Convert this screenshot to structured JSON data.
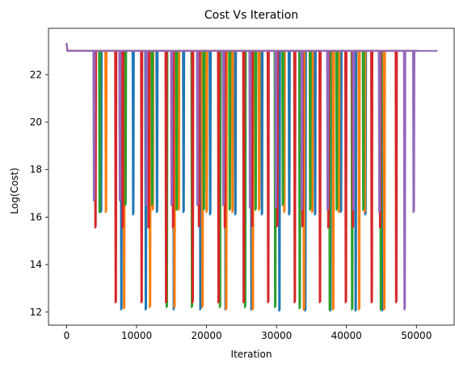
{
  "chart_data": {
    "type": "line",
    "title": "Cost Vs Iteration",
    "xlabel": "Iteration",
    "ylabel": "Log(Cost)",
    "xlim": [
      -2600,
      55400
    ],
    "ylim": [
      11.45,
      23.95
    ],
    "xticks": [
      0,
      10000,
      20000,
      30000,
      40000,
      50000
    ],
    "xtick_labels": [
      "0",
      "10000",
      "20000",
      "30000",
      "40000",
      "50000"
    ],
    "yticks": [
      12,
      14,
      16,
      18,
      20,
      22
    ],
    "ytick_labels": [
      "12",
      "14",
      "16",
      "18",
      "20",
      "22"
    ],
    "grid": false,
    "baseline": {
      "start": [
        [
          0,
          23.3
        ],
        [
          100,
          23.0
        ]
      ],
      "level": 23.0
    },
    "series": [
      {
        "color": "#1f77b4",
        "end_x": 50000,
        "dips": [
          [
            4800,
            16.2
          ],
          [
            7700,
            12.1
          ],
          [
            9400,
            16.1
          ],
          [
            11200,
            12.1
          ],
          [
            12800,
            16.2
          ],
          [
            15200,
            12.1
          ],
          [
            16600,
            16.2
          ],
          [
            19000,
            12.1
          ],
          [
            20400,
            16.1
          ],
          [
            22600,
            12.1
          ],
          [
            24000,
            16.1
          ],
          [
            26300,
            12.1
          ],
          [
            27800,
            16.1
          ],
          [
            30300,
            12.05
          ],
          [
            31700,
            16.1
          ],
          [
            34000,
            12.05
          ],
          [
            35400,
            16.1
          ],
          [
            37600,
            12.05
          ],
          [
            39100,
            16.2
          ],
          [
            41200,
            12.05
          ],
          [
            42600,
            16.1
          ],
          [
            45000,
            12.05
          ]
        ]
      },
      {
        "color": "#ff7f0e",
        "end_x": 50000,
        "dips": [
          [
            5500,
            16.2
          ],
          [
            8100,
            12.15
          ],
          [
            12200,
            16.3
          ],
          [
            11800,
            12.2
          ],
          [
            15300,
            12.2
          ],
          [
            15900,
            16.3
          ],
          [
            19300,
            12.2
          ],
          [
            19900,
            16.2
          ],
          [
            22700,
            12.1
          ],
          [
            23600,
            16.2
          ],
          [
            26500,
            12.1
          ],
          [
            27400,
            16.3
          ],
          [
            31000,
            16.2
          ],
          [
            33800,
            12.1
          ],
          [
            35000,
            16.2
          ],
          [
            38000,
            12.1
          ],
          [
            38800,
            16.2
          ],
          [
            41700,
            12.1
          ],
          [
            42500,
            16.2
          ],
          [
            45300,
            12.1
          ]
        ]
      },
      {
        "color": "#2ca02c",
        "end_x": 50000,
        "dips": [
          [
            4600,
            16.2
          ],
          [
            8300,
            16.5
          ],
          [
            12100,
            16.5
          ],
          [
            14200,
            12.2
          ],
          [
            15600,
            16.3
          ],
          [
            17800,
            12.2
          ],
          [
            19500,
            16.3
          ],
          [
            21800,
            12.2
          ],
          [
            23200,
            16.3
          ],
          [
            25400,
            12.2
          ],
          [
            26900,
            16.3
          ],
          [
            29700,
            12.2
          ],
          [
            30800,
            16.5
          ],
          [
            33200,
            12.15
          ],
          [
            34700,
            16.3
          ],
          [
            37500,
            12.1
          ],
          [
            38500,
            16.3
          ],
          [
            40700,
            12.1
          ],
          [
            42300,
            16.3
          ],
          [
            44800,
            12.1
          ]
        ]
      },
      {
        "color": "#d62728",
        "end_x": 50000,
        "dips": [
          [
            4000,
            15.55
          ],
          [
            6900,
            12.4
          ],
          [
            7900,
            15.55
          ],
          [
            10600,
            12.4
          ],
          [
            11600,
            15.55
          ],
          [
            14100,
            12.4
          ],
          [
            15100,
            15.55
          ],
          [
            17900,
            12.4
          ],
          [
            18800,
            15.6
          ],
          [
            21600,
            12.4
          ],
          [
            22500,
            15.55
          ],
          [
            25200,
            12.4
          ],
          [
            26400,
            15.6
          ],
          [
            28700,
            12.4
          ],
          [
            30000,
            15.6
          ],
          [
            32500,
            12.4
          ],
          [
            33600,
            15.6
          ],
          [
            36100,
            12.4
          ],
          [
            37300,
            15.55
          ],
          [
            39800,
            12.4
          ],
          [
            40800,
            15.55
          ],
          [
            43500,
            12.4
          ],
          [
            44700,
            15.55
          ],
          [
            47000,
            12.4
          ]
        ]
      },
      {
        "color": "#9467bd",
        "end_x": 52900,
        "dips": [
          [
            3800,
            16.7
          ],
          [
            7500,
            16.7
          ],
          [
            11300,
            16.5
          ],
          [
            14900,
            16.5
          ],
          [
            18600,
            16.5
          ],
          [
            22300,
            16.5
          ],
          [
            26100,
            16.4
          ],
          [
            29800,
            16.4
          ],
          [
            33500,
            16.3
          ],
          [
            37200,
            16.3
          ],
          [
            40900,
            16.3
          ],
          [
            44600,
            16.2
          ],
          [
            48200,
            12.1
          ],
          [
            49500,
            16.2
          ]
        ]
      }
    ]
  }
}
